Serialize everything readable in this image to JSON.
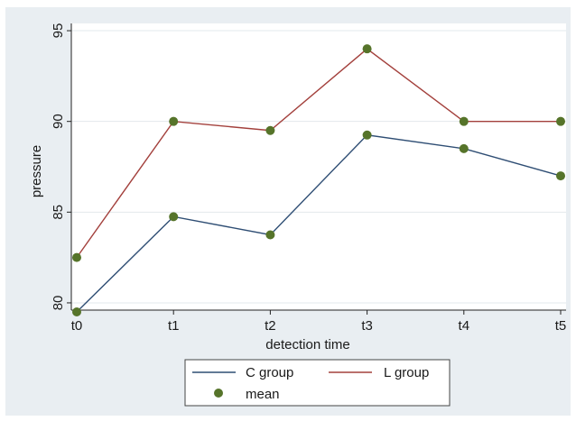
{
  "chart_data": {
    "type": "line",
    "title": "",
    "xlabel": "detection time",
    "ylabel": "pressure",
    "categories": [
      "t0",
      "t1",
      "t2",
      "t3",
      "t4",
      "t5"
    ],
    "ylim": [
      79.6,
      95.4
    ],
    "yticks": [
      80,
      85,
      90,
      95
    ],
    "grid": true,
    "legend_position": "bottom",
    "series": [
      {
        "name": "C group",
        "color": "#2f4e74",
        "values": [
          79.5,
          84.75,
          83.75,
          89.25,
          88.5,
          87.0
        ]
      },
      {
        "name": "L group",
        "color": "#a3403c",
        "values": [
          82.5,
          90.0,
          89.5,
          94.0,
          90.0,
          90.0
        ]
      },
      {
        "name": "mean",
        "marker_color": "#56742a",
        "marker": "circle",
        "marker_on": [
          "C group",
          "L group"
        ]
      }
    ]
  }
}
